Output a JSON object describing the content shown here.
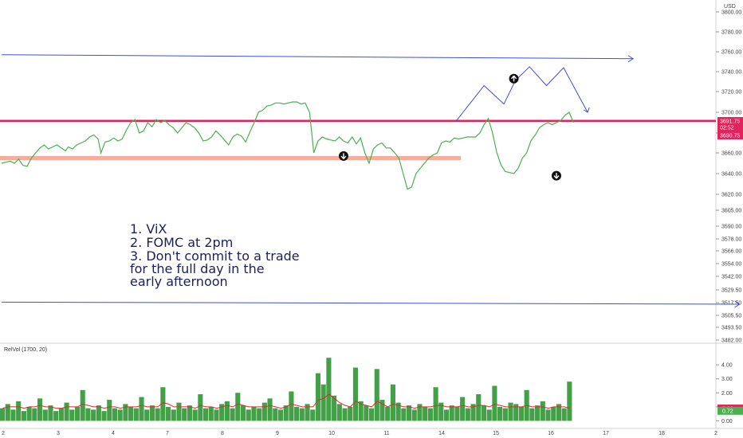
{
  "chart_data": [
    {
      "type": "line",
      "title": "",
      "unit": "USD",
      "x_ticks": [
        "2",
        "3",
        "4",
        "7",
        "8",
        "9",
        "10",
        "11",
        "14",
        "15",
        "16",
        "17",
        "18",
        "2"
      ],
      "y_ticks": [
        3800,
        3780,
        3760,
        3740,
        3720,
        3700,
        3680,
        3660,
        3640,
        3620,
        3605,
        3590,
        3578,
        3566,
        3554,
        3542,
        3529.5,
        3517.5,
        3505.5,
        3493.5,
        3482
      ],
      "y_tick_labels": [
        "3800.00",
        "3780.00",
        "3760.00",
        "3740.00",
        "3720.00",
        "3700.00",
        "3680.00",
        "3660.00",
        "3640.00",
        "3620.00",
        "3605.00",
        "3590.00",
        "3578.00",
        "3566.00",
        "3554.00",
        "3542.00",
        "3529.50",
        "3517.50",
        "3505.50",
        "3493.50",
        "3482.00"
      ],
      "price_badges": [
        {
          "value": 3691.75,
          "label": "3691.75",
          "color": "#e0245e"
        },
        {
          "value": 3686,
          "label": "02:52",
          "color": "#e0245e"
        },
        {
          "value": 3680,
          "label": "3690.75",
          "color": "#e0245e"
        }
      ],
      "series": [
        {
          "color": "#4caf50",
          "x": [
            0,
            0.3,
            0.6,
            0.9,
            1.2,
            1.5,
            1.8,
            2.1,
            2.4,
            2.7,
            3.0,
            3.3,
            3.6,
            3.9,
            4.2,
            4.5,
            4.7,
            5.0,
            5.3,
            5.6,
            5.9,
            6.2,
            6.5,
            6.8,
            7.0,
            7.3,
            7.6,
            7.9,
            8.2,
            8.5,
            8.8,
            9.1,
            9.4,
            9.7,
            10.0,
            10.3,
            10.6,
            10.9,
            11.2,
            11.5,
            11.8,
            12.1,
            12.4,
            12.7,
            13.0,
            13.3,
            13.6,
            13.9,
            14.2,
            14.5,
            14.8,
            15.1,
            15.4,
            15.7,
            16.0,
            16.3,
            16.6,
            16.9,
            17.2,
            17.5,
            17.8,
            18.1,
            18.4,
            18.7,
            19.0,
            19.3,
            19.6,
            19.9,
            20.2,
            20.5,
            20.8,
            21.1,
            21.4,
            21.7,
            22.0,
            22.3,
            22.6,
            22.9,
            23.2,
            23.5,
            23.8,
            24.1,
            24.4,
            24.7,
            25.0,
            25.3,
            25.6,
            25.9,
            26.2,
            26.5,
            26.8,
            27.1,
            27.4,
            27.7,
            28.0,
            28.3,
            28.6,
            28.9,
            29.2,
            29.5,
            29.8,
            30.1,
            30.4,
            30.7,
            31.0,
            31.3,
            31.6,
            31.9,
            32.2,
            32.5,
            32.8,
            33.1,
            33.4,
            33.7,
            34.0,
            34.3,
            34.6,
            34.9,
            35.2,
            35.5,
            35.8,
            36.1,
            36.4,
            36.7,
            37.0,
            37.3,
            37.6,
            37.9,
            38.2,
            38.5,
            38.8,
            39.1,
            39.4,
            39.7,
            40.0,
            40.3
          ],
          "y": [
            3650,
            3651,
            3652,
            3650,
            3654,
            3648,
            3647,
            3655,
            3660,
            3665,
            3668,
            3664,
            3666,
            3668,
            3665,
            3662,
            3666,
            3664,
            3668,
            3670,
            3672,
            3676,
            3678,
            3674,
            3660,
            3671,
            3672,
            3675,
            3672,
            3674,
            3683,
            3690,
            3693,
            3680,
            3682,
            3690,
            3686,
            3693,
            3690,
            3692,
            3688,
            3685,
            3680,
            3685,
            3690,
            3688,
            3685,
            3680,
            3672,
            3673,
            3676,
            3682,
            3678,
            3673,
            3668,
            3676,
            3679,
            3677,
            3671,
            3681,
            3690,
            3700,
            3702,
            3706,
            3707,
            3709,
            3709,
            3708,
            3709,
            3710,
            3710,
            3708,
            3709,
            3700,
            3660,
            3672,
            3676,
            3674,
            3673,
            3672,
            3676,
            3672,
            3670,
            3676,
            3669,
            3675,
            3660,
            3650,
            3664,
            3668,
            3670,
            3665,
            3665,
            3660,
            3655,
            3640,
            3625,
            3627,
            3640,
            3645,
            3650,
            3655,
            3658,
            3660,
            3670,
            3672,
            3671,
            3675,
            3674,
            3675,
            3676,
            3676,
            3676,
            3680,
            3688,
            3694,
            3680,
            3660,
            3648,
            3642,
            3641,
            3640,
            3645,
            3655,
            3660,
            3672,
            3678,
            3685,
            3688,
            3690,
            3688,
            3690,
            3692,
            3697,
            3700,
            3690
          ]
        }
      ],
      "horizontal_lines": [
        {
          "value": 3691.75,
          "color": "#e0245e"
        }
      ],
      "zones": [
        {
          "from": 3657,
          "to": 3661,
          "color": "#f3a08a"
        }
      ],
      "annotations": [
        "1. ViX",
        "2. FOMC at 2pm",
        "3. Don't commit to a trade",
        "for the full day in the",
        "early afternoon"
      ],
      "projection_path": {
        "x": [
          32,
          34,
          35.4,
          36.2,
          37.2,
          38.4,
          39.6,
          41.3
        ],
        "y": [
          3691,
          3726,
          3708,
          3731,
          3745,
          3726,
          3744,
          3700
        ]
      },
      "trend_lines": [
        {
          "x": [
            0,
            44.5
          ],
          "y": [
            3757,
            3753
          ]
        },
        {
          "x": [
            0,
            52
          ],
          "y": [
            3518,
            3516
          ]
        }
      ],
      "markers": [
        {
          "x": 24.1,
          "y": 3657,
          "direction": "down"
        },
        {
          "x": 36.1,
          "y": 3733,
          "direction": "up"
        },
        {
          "x": 39.1,
          "y": 3638,
          "direction": "down"
        }
      ],
      "ylim": [
        3482,
        3804
      ],
      "grid": false
    },
    {
      "type": "bar",
      "title": "RelVol (1700, 20)",
      "y_ticks": [
        0,
        1,
        2,
        3,
        4
      ],
      "y_tick_labels": [
        "0.00",
        "1.00",
        "2.00",
        "3.00",
        "4.00"
      ],
      "value_badges": [
        {
          "value": 0.88,
          "label": "0.88",
          "color": "#e0245e"
        },
        {
          "value": 0.72,
          "label": "0.72",
          "color": "#4caf50"
        }
      ],
      "series": [
        {
          "color": "#43a047",
          "values": [
            0.9,
            1.2,
            0.8,
            1.4,
            0.7,
            1.0,
            0.9,
            1.6,
            0.8,
            1.1,
            0.7,
            0.9,
            1.3,
            0.8,
            1.0,
            2.2,
            0.9,
            0.8,
            1.1,
            0.7,
            1.5,
            0.9,
            0.8,
            1.2,
            1.0,
            0.9,
            1.7,
            0.8,
            1.1,
            0.9,
            2.4,
            1.0,
            0.8,
            1.3,
            0.9,
            1.1,
            0.8,
            1.9,
            0.9,
            1.0,
            0.8,
            1.2,
            1.4,
            0.9,
            2.0,
            1.1,
            0.8,
            1.0,
            0.9,
            1.3,
            1.6,
            0.9,
            0.8,
            1.1,
            2.1,
            1.0,
            0.9,
            1.2,
            0.8,
            3.4,
            2.6,
            4.5,
            1.8,
            1.2,
            0.9,
            1.0,
            3.8,
            1.4,
            1.1,
            0.9,
            3.7,
            1.5,
            1.0,
            2.6,
            1.3,
            0.9,
            1.1,
            0.8,
            1.2,
            1.0,
            0.9,
            2.4,
            1.3,
            0.8,
            1.1,
            1.0,
            1.7,
            0.9,
            1.2,
            1.9,
            1.1,
            0.8,
            2.5,
            1.0,
            0.9,
            1.3,
            1.2,
            1.0,
            2.2,
            0.9,
            1.1,
            1.4,
            0.8,
            1.0,
            1.2,
            0.9,
            2.8
          ]
        },
        {
          "color": "#d32f2f",
          "values": [
            0.9,
            1.0,
            1.0,
            1.0,
            0.9,
            1.0,
            1.0,
            1.1,
            1.0,
            1.0,
            0.9,
            0.9,
            1.0,
            1.0,
            1.0,
            1.2,
            1.1,
            1.0,
            1.0,
            0.9,
            1.0,
            1.0,
            0.9,
            1.0,
            1.0,
            1.0,
            1.1,
            1.0,
            1.0,
            1.0,
            1.3,
            1.2,
            1.0,
            1.0,
            1.0,
            1.0,
            0.9,
            1.1,
            1.0,
            1.0,
            0.9,
            1.0,
            1.1,
            1.0,
            1.2,
            1.1,
            1.0,
            1.0,
            1.0,
            1.0,
            1.1,
            1.0,
            0.9,
            1.0,
            1.2,
            1.1,
            1.0,
            1.0,
            1.0,
            1.5,
            1.6,
            1.9,
            1.6,
            1.3,
            1.1,
            1.0,
            1.4,
            1.2,
            1.1,
            1.0,
            1.4,
            1.2,
            1.0,
            1.2,
            1.1,
            1.0,
            1.0,
            0.9,
            1.0,
            1.0,
            1.0,
            1.1,
            1.1,
            1.0,
            1.0,
            1.0,
            1.1,
            1.0,
            1.0,
            1.1,
            1.1,
            1.0,
            1.2,
            1.1,
            1.0,
            1.0,
            1.0,
            1.0,
            1.1,
            1.0,
            1.0,
            1.0,
            0.9,
            1.0,
            1.0,
            1.0,
            0.9
          ]
        }
      ],
      "ylim": [
        -0.2,
        4.8
      ]
    }
  ]
}
